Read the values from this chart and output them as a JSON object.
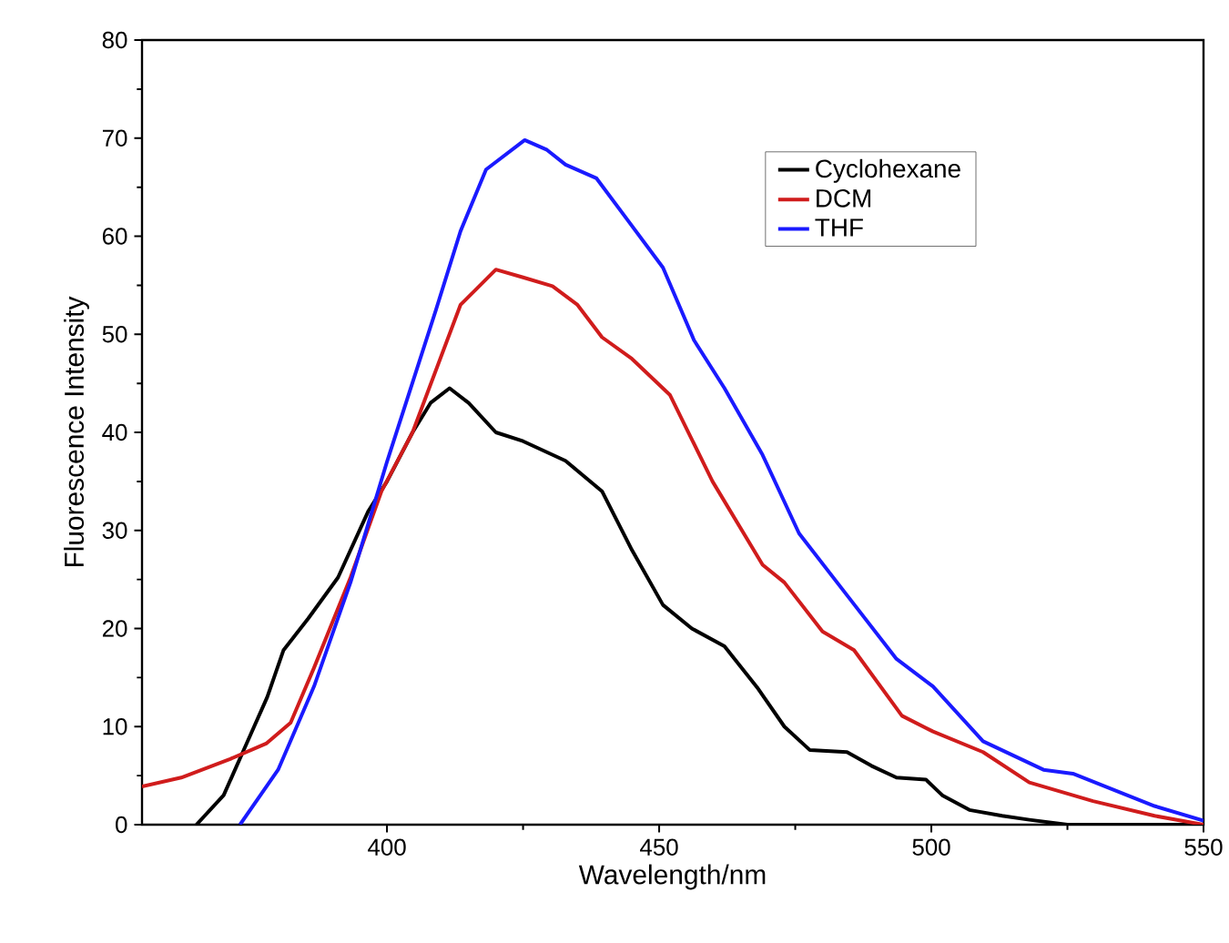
{
  "chart_data": {
    "type": "line",
    "xlabel": "Wavelength/nm",
    "ylabel": "Fluorescence Intensity",
    "xlim": [
      355,
      550
    ],
    "ylim": [
      0,
      80
    ],
    "xticks": [
      400,
      450,
      500,
      550
    ],
    "yticks": [
      0,
      10,
      20,
      30,
      40,
      50,
      60,
      70,
      80
    ],
    "grid": false,
    "legend": "top right",
    "marker": "none",
    "line_style": "solid",
    "series": [
      {
        "name": "Cyclohexane",
        "color": "#000000",
        "x": [
          365,
          370,
          374,
          378,
          381,
          385.5,
          391,
          396.6,
          400,
          404.7,
          408,
          411.5,
          415,
          420,
          425,
          432.8,
          439.5,
          445,
          450.7,
          456,
          462,
          468,
          473,
          477.7,
          484.5,
          489,
          493.6,
          499,
          502,
          507,
          513,
          518,
          525,
          550
        ],
        "values": [
          0,
          3,
          8,
          13,
          17.8,
          21,
          25.2,
          32,
          35,
          40,
          43,
          44.5,
          43,
          40,
          39.1,
          37.1,
          34,
          28,
          22.4,
          20,
          18.2,
          14,
          10,
          7.6,
          7.4,
          6,
          4.8,
          4.6,
          3,
          1.5,
          0.9,
          0.5,
          0,
          0
        ]
      },
      {
        "name": "DCM",
        "color": "#d01c1c",
        "x": [
          355,
          362.2,
          371.2,
          377.9,
          382.3,
          386.6,
          393.3,
          399,
          404.7,
          413.5,
          420,
          425,
          430.4,
          435,
          439.5,
          445,
          452,
          459.8,
          469,
          473,
          480,
          485.8,
          494.6,
          500.3,
          509.5,
          518,
          529.7,
          541,
          550
        ],
        "values": [
          3.9,
          4.8,
          6.7,
          8.3,
          10.4,
          16,
          25.2,
          34,
          40,
          53,
          56.6,
          55.8,
          54.9,
          53,
          49.7,
          47.5,
          43.8,
          35,
          26.5,
          24.7,
          19.7,
          17.8,
          11.1,
          9.5,
          7.4,
          4.3,
          2.4,
          0.9,
          0
        ]
      },
      {
        "name": "THF",
        "color": "#1a1aff",
        "x": [
          373,
          380,
          386.6,
          393.3,
          400,
          409,
          413.5,
          418.2,
          425.3,
          429.4,
          432.8,
          438.5,
          444,
          450.7,
          456.4,
          462,
          469,
          475.7,
          484.5,
          493.6,
          500.3,
          509.5,
          520.6,
          526,
          541,
          550
        ],
        "values": [
          0,
          5.6,
          14.1,
          24.7,
          37,
          52.5,
          60.5,
          66.8,
          69.8,
          68.8,
          67.3,
          65.9,
          61.8,
          56.8,
          49.4,
          44.5,
          37.7,
          29.7,
          23.4,
          16.9,
          14.1,
          8.5,
          5.6,
          5.2,
          1.9,
          0.4
        ]
      }
    ]
  }
}
